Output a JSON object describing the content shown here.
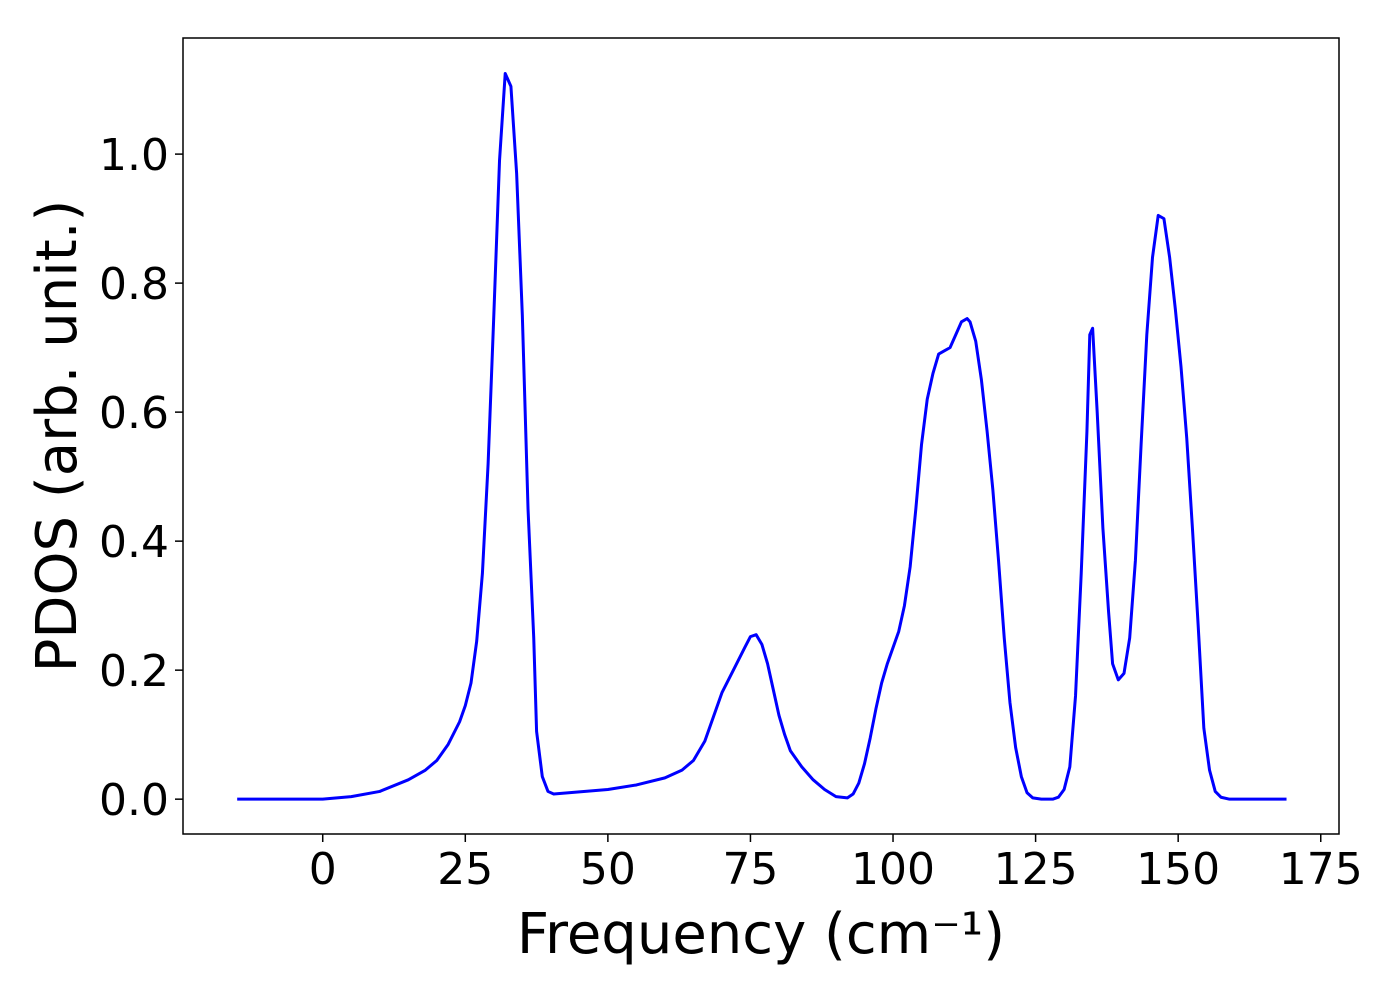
{
  "chart_data": {
    "type": "line",
    "xlabel": "Frequency (cm⁻¹)",
    "ylabel": "PDOS (arb. unit.)",
    "color": "#0000ff",
    "x": [
      -15,
      0,
      5,
      10,
      15,
      18,
      20,
      22,
      24,
      25,
      26,
      27,
      28,
      29,
      30,
      31,
      32,
      33,
      34,
      35,
      36,
      37,
      37.5,
      38.5,
      39.5,
      40.5,
      50,
      55,
      60,
      63,
      65,
      67,
      69,
      70,
      72,
      74,
      75,
      76,
      77,
      78,
      79,
      80,
      81,
      82,
      84,
      86,
      88,
      90,
      92,
      93,
      94,
      95,
      96,
      97,
      98,
      99,
      100,
      101,
      102,
      103,
      104,
      105,
      106,
      107,
      108,
      109,
      110,
      111,
      112,
      113,
      113.5,
      114.5,
      115.5,
      116.5,
      117.5,
      118.5,
      119.5,
      120.5,
      121.5,
      122.5,
      123.5,
      124.5,
      126,
      128,
      129,
      130,
      131,
      132,
      133,
      134,
      134.5,
      135,
      135.8,
      136.8,
      137.8,
      138.5,
      139.5,
      140.5,
      141.5,
      142.5,
      143.5,
      144.5,
      145.5,
      146.5,
      147.5,
      148.5,
      149.5,
      150.5,
      151.5,
      152.5,
      153.5,
      154.5,
      155.5,
      156.5,
      157.5,
      159,
      169
    ],
    "values": [
      0,
      0,
      0.004,
      0.012,
      0.03,
      0.045,
      0.06,
      0.085,
      0.12,
      0.145,
      0.18,
      0.245,
      0.35,
      0.52,
      0.75,
      0.99,
      1.125,
      1.105,
      0.97,
      0.75,
      0.45,
      0.25,
      0.105,
      0.035,
      0.012,
      0.008,
      0.015,
      0.022,
      0.033,
      0.045,
      0.06,
      0.09,
      0.14,
      0.165,
      0.2,
      0.235,
      0.252,
      0.255,
      0.24,
      0.21,
      0.17,
      0.13,
      0.1,
      0.075,
      0.05,
      0.03,
      0.015,
      0.004,
      0.002,
      0.008,
      0.025,
      0.055,
      0.095,
      0.14,
      0.18,
      0.21,
      0.235,
      0.26,
      0.3,
      0.36,
      0.45,
      0.55,
      0.62,
      0.66,
      0.69,
      0.695,
      0.7,
      0.72,
      0.74,
      0.745,
      0.74,
      0.71,
      0.65,
      0.57,
      0.48,
      0.37,
      0.25,
      0.15,
      0.08,
      0.035,
      0.01,
      0.002,
      0,
      0,
      0.003,
      0.015,
      0.05,
      0.16,
      0.35,
      0.57,
      0.72,
      0.73,
      0.6,
      0.42,
      0.29,
      0.21,
      0.185,
      0.195,
      0.25,
      0.37,
      0.55,
      0.72,
      0.84,
      0.905,
      0.9,
      0.84,
      0.76,
      0.67,
      0.56,
      0.42,
      0.27,
      0.11,
      0.045,
      0.012,
      0.003,
      0,
      0
    ],
    "xlim": [
      -24.5,
      178.2
    ],
    "xticks": [
      0,
      25,
      50,
      75,
      100,
      125,
      150,
      175
    ],
    "ylim": [
      -0.054,
      1.18
    ],
    "yticks": [
      {
        "value": 0,
        "label": "0.0"
      },
      {
        "value": 0.2,
        "label": "0.2"
      },
      {
        "value": 0.4,
        "label": "0.4"
      },
      {
        "value": 0.6,
        "label": "0.6"
      },
      {
        "value": 0.8,
        "label": "0.8"
      },
      {
        "value": 1.0,
        "label": "1.0"
      }
    ]
  }
}
